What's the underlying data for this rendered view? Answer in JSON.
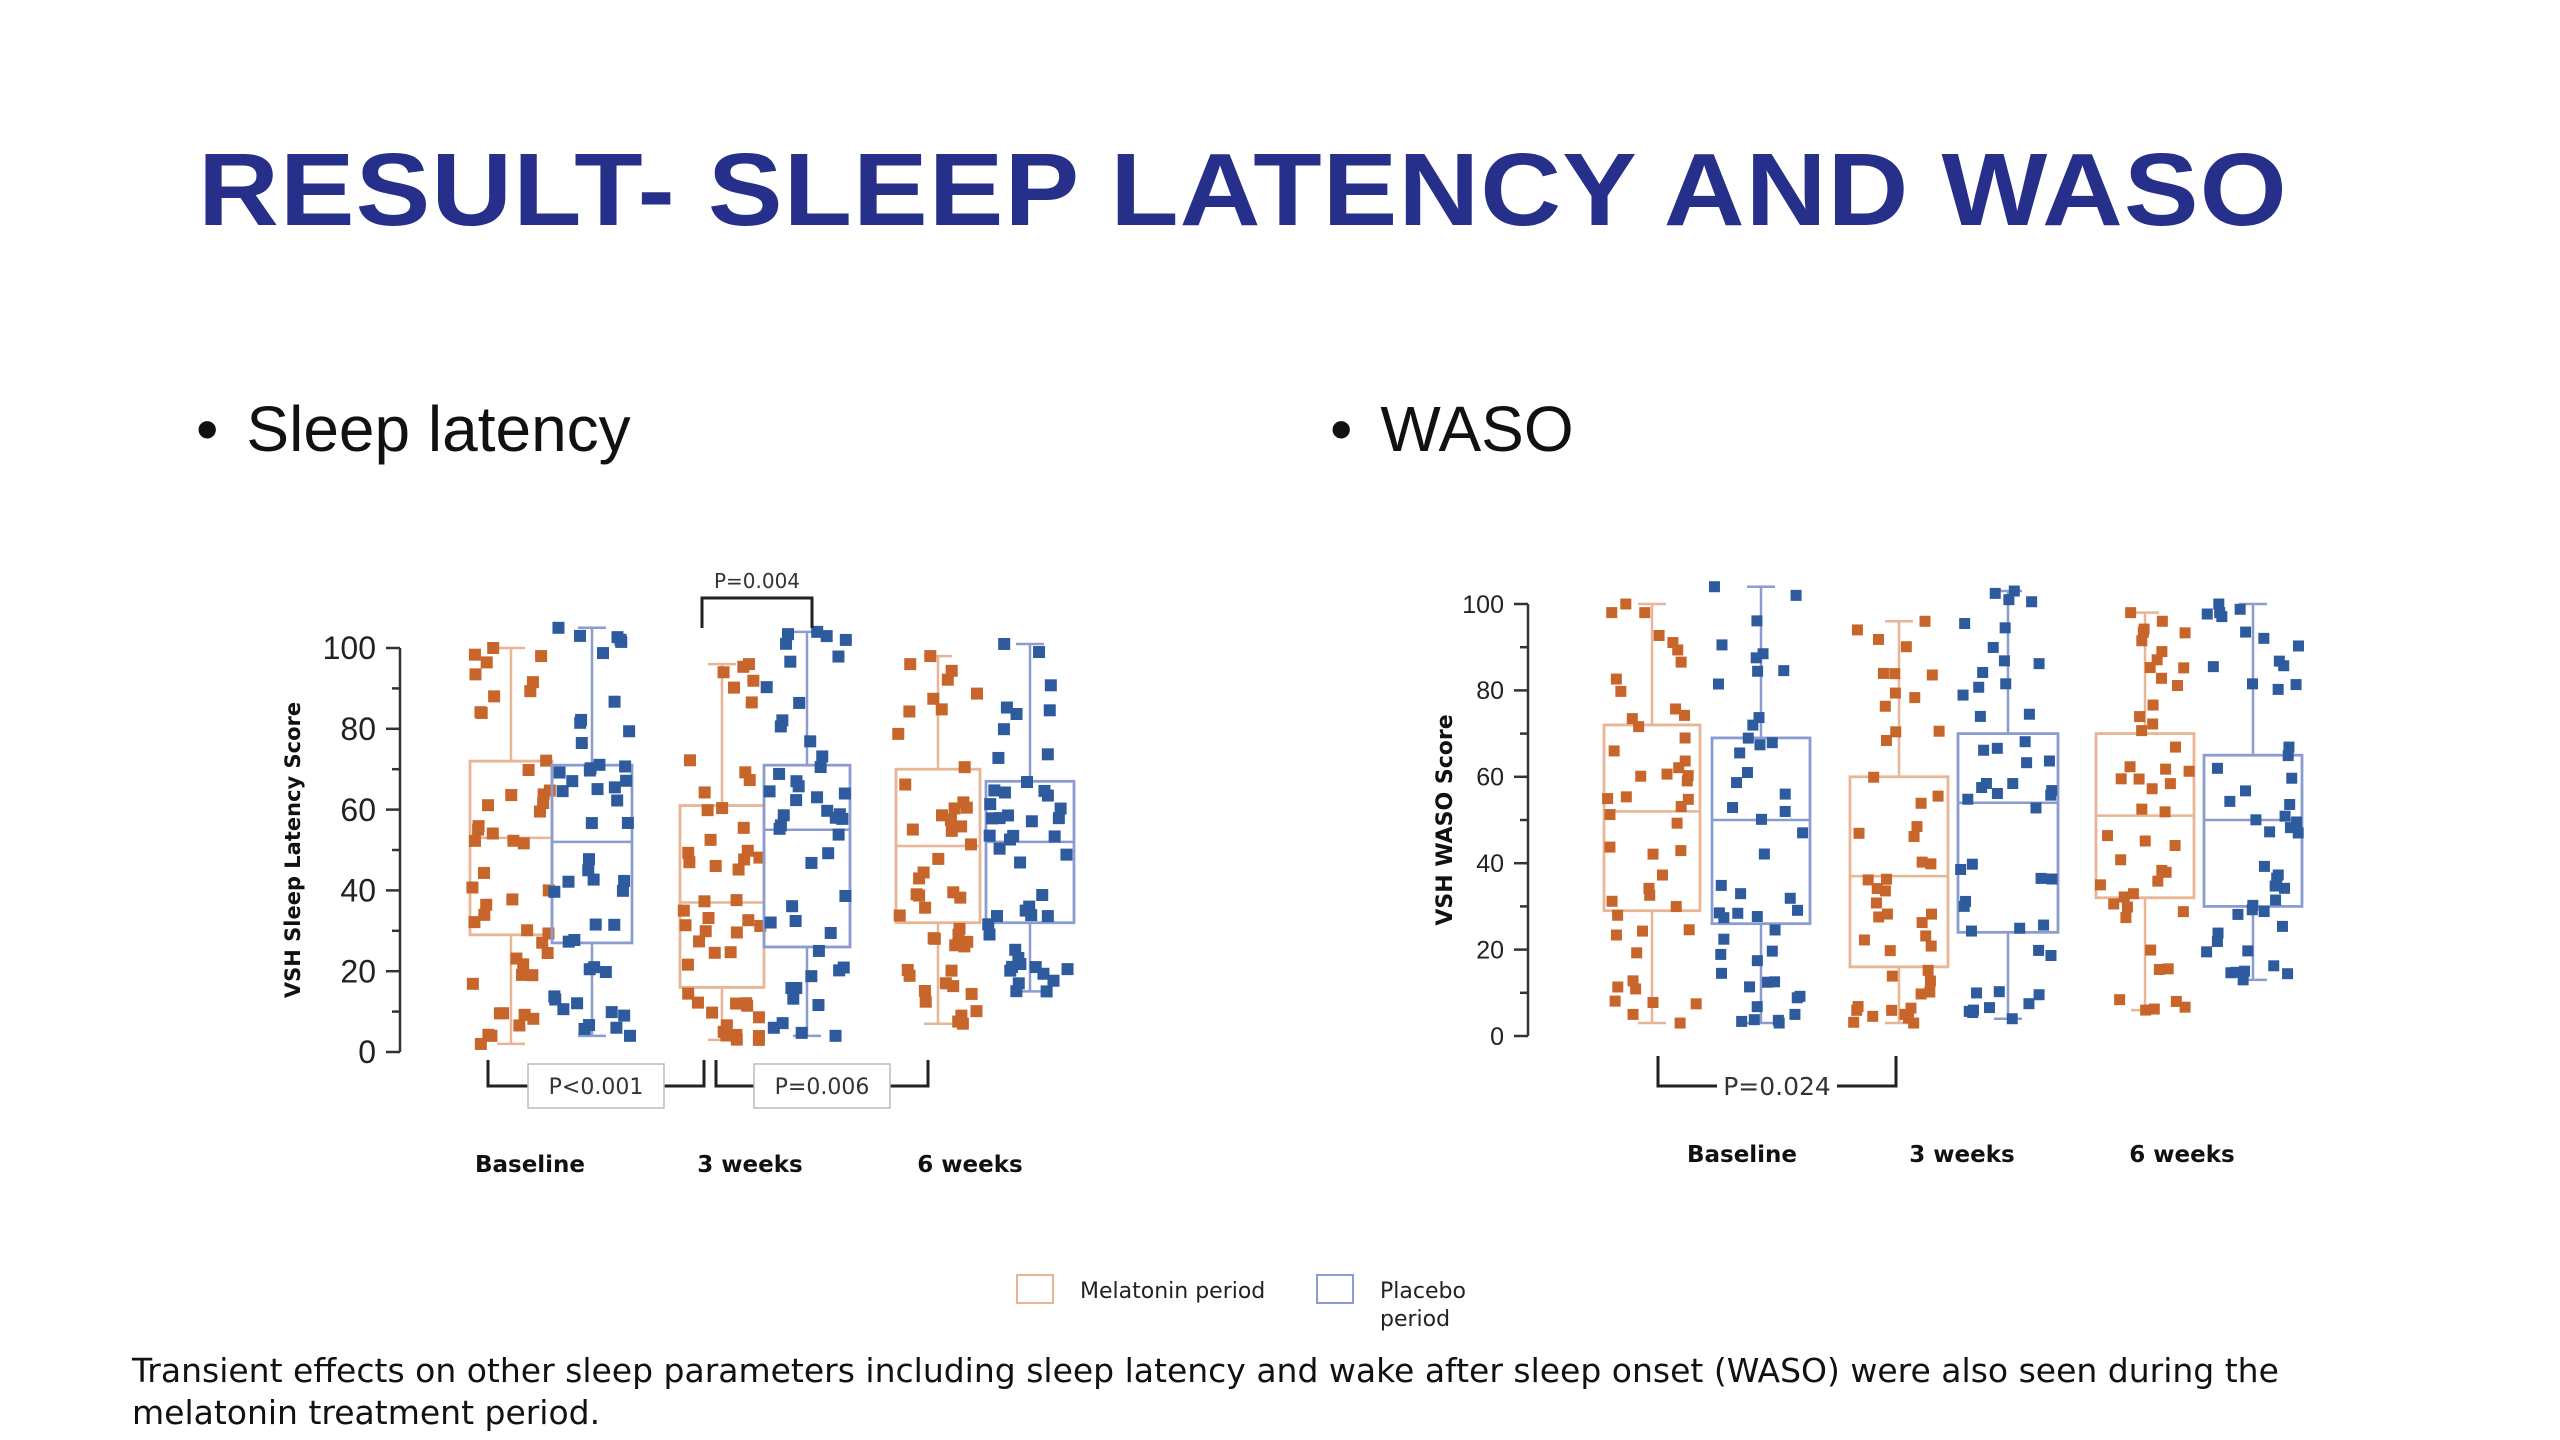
{
  "slide": {
    "title": "RESULT- SLEEP LATENCY AND WASO",
    "bullet_left": "Sleep latency",
    "bullet_right": "WASO",
    "bullet_glyph": "•",
    "footer": "Transient effects on other sleep parameters including sleep latency and wake after sleep onset (WASO) were also seen during the melatonin treatment period."
  },
  "colors": {
    "title": "#26308a",
    "melatonin_box": "#e8b595",
    "melatonin_point": "#c8652a",
    "placebo_box": "#8b9dd0",
    "placebo_point": "#2e5a9e"
  },
  "legend": {
    "melatonin": "Melatonin period",
    "placebo": "Placebo period"
  },
  "chart_data": [
    {
      "type": "box",
      "id": "sleep-latency",
      "title": "",
      "ylabel": "VSH Sleep Latency Score",
      "xlabel": "",
      "ylim": [
        0,
        100
      ],
      "yticks": [
        0,
        20,
        40,
        60,
        80,
        100
      ],
      "categories": [
        "Baseline",
        "3 weeks",
        "6 weeks"
      ],
      "series": [
        {
          "name": "Melatonin period",
          "boxes": [
            {
              "min": 2,
              "q1": 29,
              "median": 53,
              "q3": 72,
              "max": 100
            },
            {
              "min": 3,
              "q1": 16,
              "median": 37,
              "q3": 61,
              "max": 96
            },
            {
              "min": 7,
              "q1": 32,
              "median": 51,
              "q3": 70,
              "max": 98
            }
          ]
        },
        {
          "name": "Placebo period",
          "boxes": [
            {
              "min": 4,
              "q1": 27,
              "median": 52,
              "q3": 71,
              "max": 105
            },
            {
              "min": 4,
              "q1": 26,
              "median": 55,
              "q3": 71,
              "max": 104
            },
            {
              "min": 15,
              "q1": 32,
              "median": 52,
              "q3": 67,
              "max": 101
            }
          ]
        }
      ],
      "annotations": [
        {
          "text": "P<0.001",
          "from": "Baseline",
          "to": "3 weeks",
          "position": "below"
        },
        {
          "text": "P=0.006",
          "from": "3 weeks",
          "to": "6 weeks",
          "position": "below"
        },
        {
          "text": "P=0.004",
          "from": "3 weeks melatonin",
          "to": "3 weeks placebo",
          "position": "above"
        }
      ]
    },
    {
      "type": "box",
      "id": "waso",
      "title": "",
      "ylabel": "VSH WASO Score",
      "xlabel": "",
      "ylim": [
        0,
        100
      ],
      "yticks": [
        0,
        20,
        40,
        60,
        80,
        100
      ],
      "categories": [
        "Baseline",
        "3 weeks",
        "6 weeks"
      ],
      "series": [
        {
          "name": "Melatonin period",
          "boxes": [
            {
              "min": 3,
              "q1": 29,
              "median": 52,
              "q3": 72,
              "max": 100
            },
            {
              "min": 3,
              "q1": 16,
              "median": 37,
              "q3": 60,
              "max": 96
            },
            {
              "min": 6,
              "q1": 32,
              "median": 51,
              "q3": 70,
              "max": 98
            }
          ]
        },
        {
          "name": "Placebo period",
          "boxes": [
            {
              "min": 3,
              "q1": 26,
              "median": 50,
              "q3": 69,
              "max": 104
            },
            {
              "min": 4,
              "q1": 24,
              "median": 54,
              "q3": 70,
              "max": 103
            },
            {
              "min": 13,
              "q1": 30,
              "median": 50,
              "q3": 65,
              "max": 100
            }
          ]
        }
      ],
      "annotations": [
        {
          "text": "P=0.024",
          "from": "Baseline",
          "to": "3 weeks",
          "position": "below"
        }
      ]
    }
  ]
}
